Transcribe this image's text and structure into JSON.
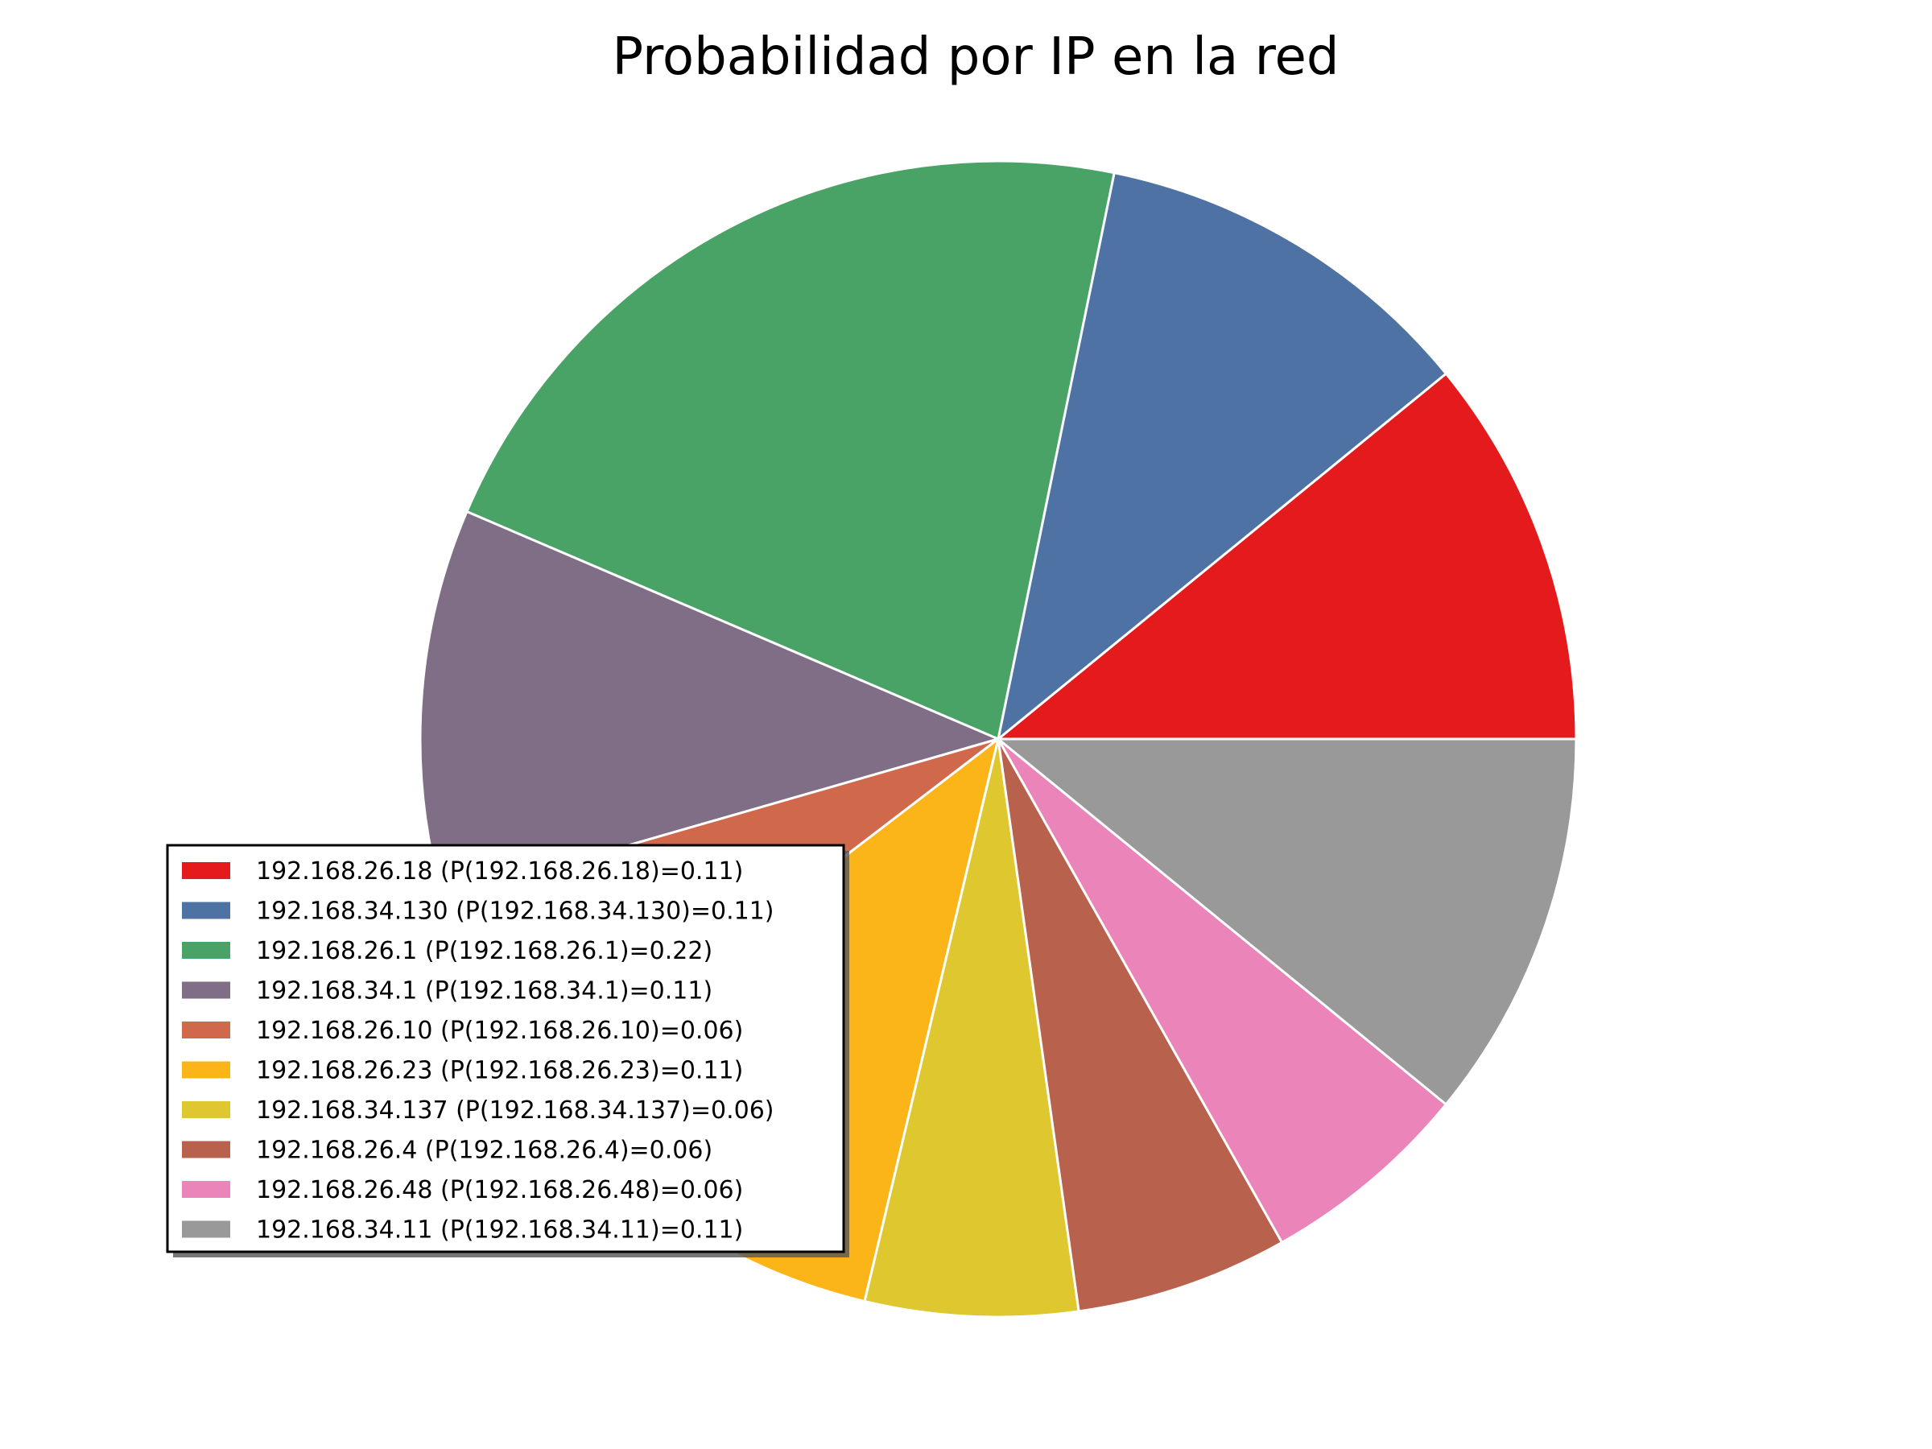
{
  "chart_data": {
    "type": "pie",
    "title": "Probabilidad por IP en la red",
    "start_angle_deg": 0,
    "direction": "counterclockwise",
    "legend_position": "lower-left",
    "slices": [
      {
        "label": "192.168.26.18 (P(192.168.26.18)=0.11)",
        "value": 0.11,
        "color": "#e41a1c"
      },
      {
        "label": "192.168.34.130 (P(192.168.34.130)=0.11)",
        "value": 0.11,
        "color": "#4d72a3"
      },
      {
        "label": "192.168.26.1 (P(192.168.26.1)=0.22)",
        "value": 0.22,
        "color": "#4aa366"
      },
      {
        "label": "192.168.34.1 (P(192.168.34.1)=0.11)",
        "value": 0.11,
        "color": "#7f6e85"
      },
      {
        "label": "192.168.26.10 (P(192.168.26.10)=0.06)",
        "value": 0.06,
        "color": "#d0694b"
      },
      {
        "label": "192.168.26.23 (P(192.168.26.23)=0.11)",
        "value": 0.11,
        "color": "#fbb518"
      },
      {
        "label": "192.168.34.137 (P(192.168.34.137)=0.06)",
        "value": 0.06,
        "color": "#dfc72f"
      },
      {
        "label": "192.168.26.4 (P(192.168.26.4)=0.06)",
        "value": 0.06,
        "color": "#b8614d"
      },
      {
        "label": "192.168.26.48 (P(192.168.26.48)=0.06)",
        "value": 0.06,
        "color": "#eb84b9"
      },
      {
        "label": "192.168.34.11 (P(192.168.34.11)=0.11)",
        "value": 0.11,
        "color": "#999999"
      }
    ]
  }
}
